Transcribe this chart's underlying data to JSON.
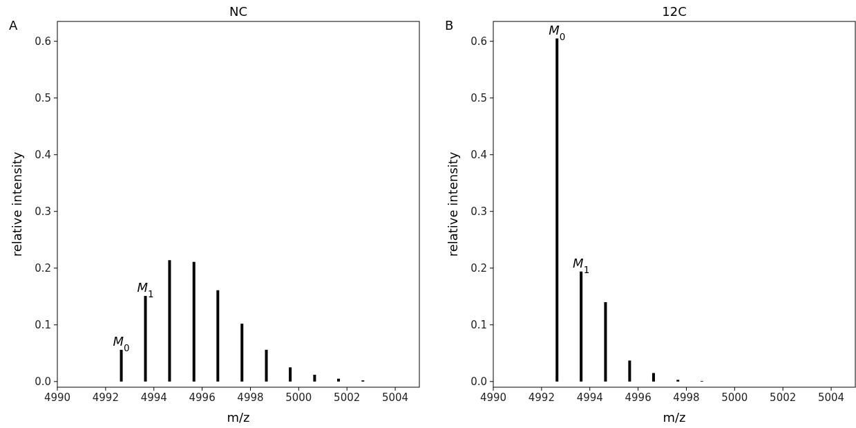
{
  "chart_data": [
    {
      "type": "bar",
      "title": "NC",
      "xlabel": "m/z",
      "ylabel": "relative intensity",
      "x": [
        4992.65,
        4993.65,
        4994.65,
        4995.66,
        4996.65,
        4997.65,
        4998.66,
        4999.65,
        5000.66,
        5001.65,
        5002.66
      ],
      "values": [
        0.056,
        0.151,
        0.214,
        0.211,
        0.161,
        0.102,
        0.056,
        0.025,
        0.012,
        0.005,
        0.002
      ],
      "color": "#000000",
      "xlim": [
        4990,
        5005
      ],
      "xticks": [
        4990,
        4992,
        4994,
        4996,
        4998,
        5000,
        5002,
        5004
      ],
      "ylim": [
        -0.01,
        0.635
      ],
      "yticks": [
        {
          "value": 0,
          "label": "0.0"
        },
        {
          "value": 0.1,
          "label": "0.1"
        },
        {
          "value": 0.2,
          "label": "0.2"
        },
        {
          "value": 0.3,
          "label": "0.3"
        },
        {
          "value": 0.4,
          "label": "0.4"
        },
        {
          "value": 0.5,
          "label": "0.5"
        },
        {
          "value": 0.6,
          "label": "0.6"
        }
      ],
      "annotations": [
        "A",
        {
          "text": "M$_{0}$",
          "x": 4992.65,
          "y": 0.056
        },
        {
          "text": "M$_{1}$",
          "x": 4993.65,
          "y": 0.151
        }
      ]
    },
    {
      "type": "bar",
      "title": "12C",
      "xlabel": "m/z",
      "ylabel": "relative intensity",
      "x": [
        4992.64,
        4993.64,
        4994.65,
        4995.65,
        4996.64,
        4997.65,
        4998.64
      ],
      "values": [
        0.605,
        0.194,
        0.14,
        0.037,
        0.015,
        0.003,
        0.001
      ],
      "color": "#000000",
      "xlim": [
        4990,
        5005
      ],
      "xticks": [
        4990,
        4992,
        4994,
        4996,
        4998,
        5000,
        5002,
        5004
      ],
      "ylim": [
        -0.01,
        0.635
      ],
      "yticks": [
        {
          "value": 0,
          "label": "0.0"
        },
        {
          "value": 0.1,
          "label": "0.1"
        },
        {
          "value": 0.2,
          "label": "0.2"
        },
        {
          "value": 0.3,
          "label": "0.3"
        },
        {
          "value": 0.4,
          "label": "0.4"
        },
        {
          "value": 0.5,
          "label": "0.5"
        },
        {
          "value": 0.6,
          "label": "0.6"
        }
      ],
      "annotations": [
        "B",
        {
          "text": "M$_{0}$",
          "x": 4992.64,
          "y": 0.605
        },
        {
          "text": "M$_{1}$",
          "x": 4993.64,
          "y": 0.194
        }
      ]
    }
  ]
}
